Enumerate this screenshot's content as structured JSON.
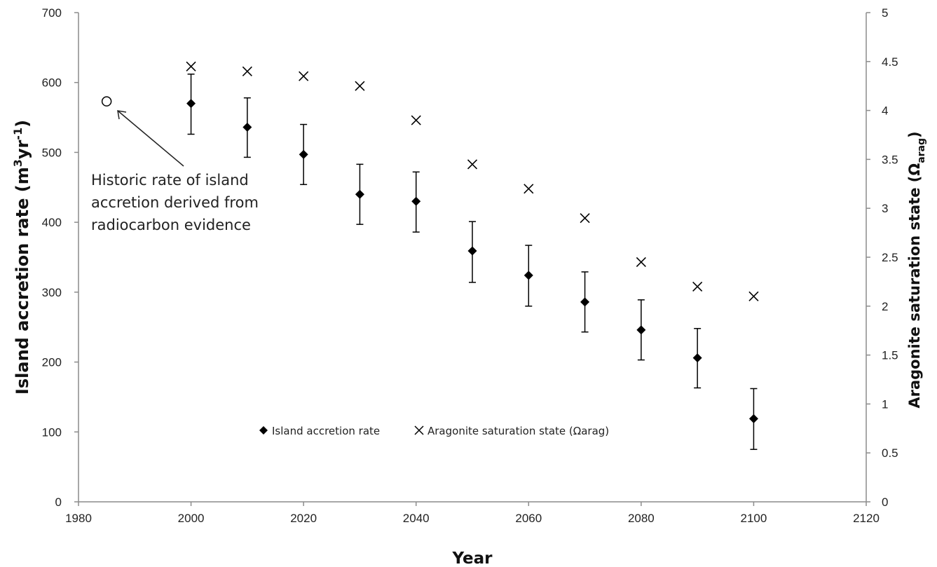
{
  "chart_data": {
    "type": "scatter",
    "title": "",
    "xlabel": "Year",
    "ylabel_left": {
      "main": "Island accretion rate (m",
      "sup1": "3",
      "mid": "yr",
      "sup2": "-1",
      "end": ")"
    },
    "ylabel_right": {
      "main": "Aragonite saturation  state (Ω",
      "sub": "arag",
      "end": ")"
    },
    "xlim": [
      1980,
      2120
    ],
    "xticks": [
      1980,
      2000,
      2020,
      2040,
      2060,
      2080,
      2100,
      2120
    ],
    "ylim_left": [
      0,
      700
    ],
    "yticks_left": [
      0,
      100,
      200,
      300,
      400,
      500,
      600,
      700
    ],
    "ylim_right": [
      0,
      5
    ],
    "yticks_right": [
      "0",
      "0.5",
      "1",
      "1.5",
      "2",
      "2.5",
      "3",
      "3.5",
      "4",
      "4.5",
      "5"
    ],
    "grid": false,
    "legend_placement": "bottom-center",
    "series": [
      {
        "name": "Island accretion rate",
        "axis": "left",
        "marker": "diamond",
        "color": "#000000",
        "x": [
          2000,
          2010,
          2020,
          2030,
          2040,
          2050,
          2060,
          2070,
          2080,
          2090,
          2100
        ],
        "y": [
          570,
          536,
          497,
          440,
          430,
          359,
          324,
          286,
          246,
          206,
          119
        ],
        "err_low": [
          526,
          493,
          454,
          397,
          386,
          314,
          280,
          243,
          203,
          163,
          75
        ],
        "err_high": [
          612,
          578,
          540,
          483,
          472,
          401,
          367,
          329,
          289,
          248,
          162
        ]
      },
      {
        "name": "Aragonite saturation  state (Ωarag)",
        "axis": "right",
        "marker": "x",
        "color": "#000000",
        "x": [
          2000,
          2010,
          2020,
          2030,
          2040,
          2050,
          2060,
          2070,
          2080,
          2090,
          2100
        ],
        "y": [
          4.45,
          4.4,
          4.35,
          4.25,
          3.9,
          3.45,
          3.2,
          2.9,
          2.45,
          2.2,
          2.1
        ]
      }
    ],
    "historic_point": {
      "x": 1985,
      "y": 573,
      "marker": "open-circle"
    },
    "annotation": {
      "lines": [
        "Historic rate of island",
        "accretion derived from",
        "radiocarbon evidence"
      ]
    }
  }
}
